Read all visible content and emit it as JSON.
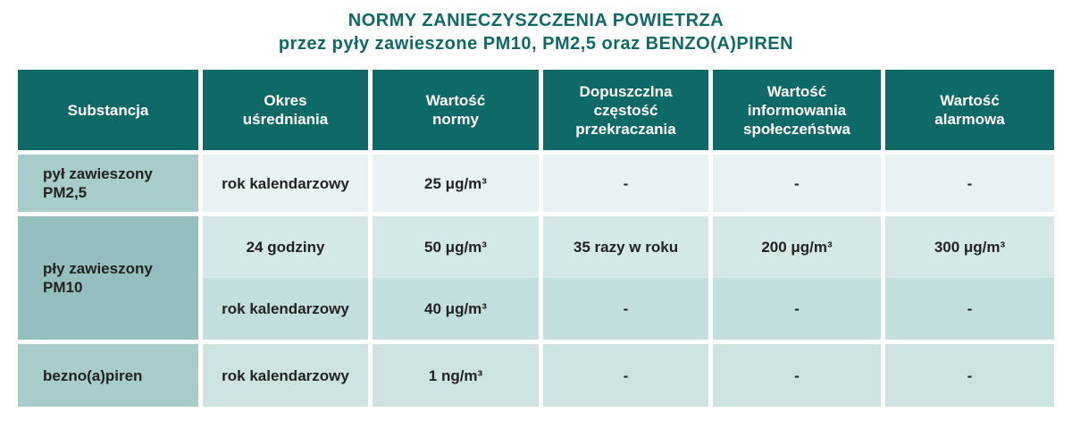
{
  "title": {
    "line1": "NORMY ZANIECZYSZCZENIA POWIETRZA",
    "line2": "przez pyły zawieszone PM10, PM2,5 oraz BENZO(A)PIREN"
  },
  "headers": {
    "substance": "Substancja",
    "period": "Okres uśredniania",
    "norm": "Wartość normy",
    "frequency": "Dopuszczlna częstość przekraczania",
    "info": "Wartość informowania społeczeństwa",
    "alarm": "Wartość alarmowa"
  },
  "rows": {
    "pm25": {
      "substance": "pył zawieszony PM2,5",
      "period": "rok kalendarzowy",
      "norm": "25 μg/m³",
      "frequency": "-",
      "info": "-",
      "alarm": "-"
    },
    "pm10_a": {
      "substance": "pły zawieszony PM10",
      "period": "24 godziny",
      "norm": "50 μg/m³",
      "frequency": "35 razy w roku",
      "info": "200 μg/m³",
      "alarm": "300 μg/m³"
    },
    "pm10_b": {
      "period": "rok kalendarzowy",
      "norm": "40 μg/m³",
      "frequency": "-",
      "info": "-",
      "alarm": "-"
    },
    "bap": {
      "substance": "bezno(a)piren",
      "period": "rok kalendarzowy",
      "norm": "1 ng/m³",
      "frequency": "-",
      "info": "-",
      "alarm": "-"
    }
  }
}
